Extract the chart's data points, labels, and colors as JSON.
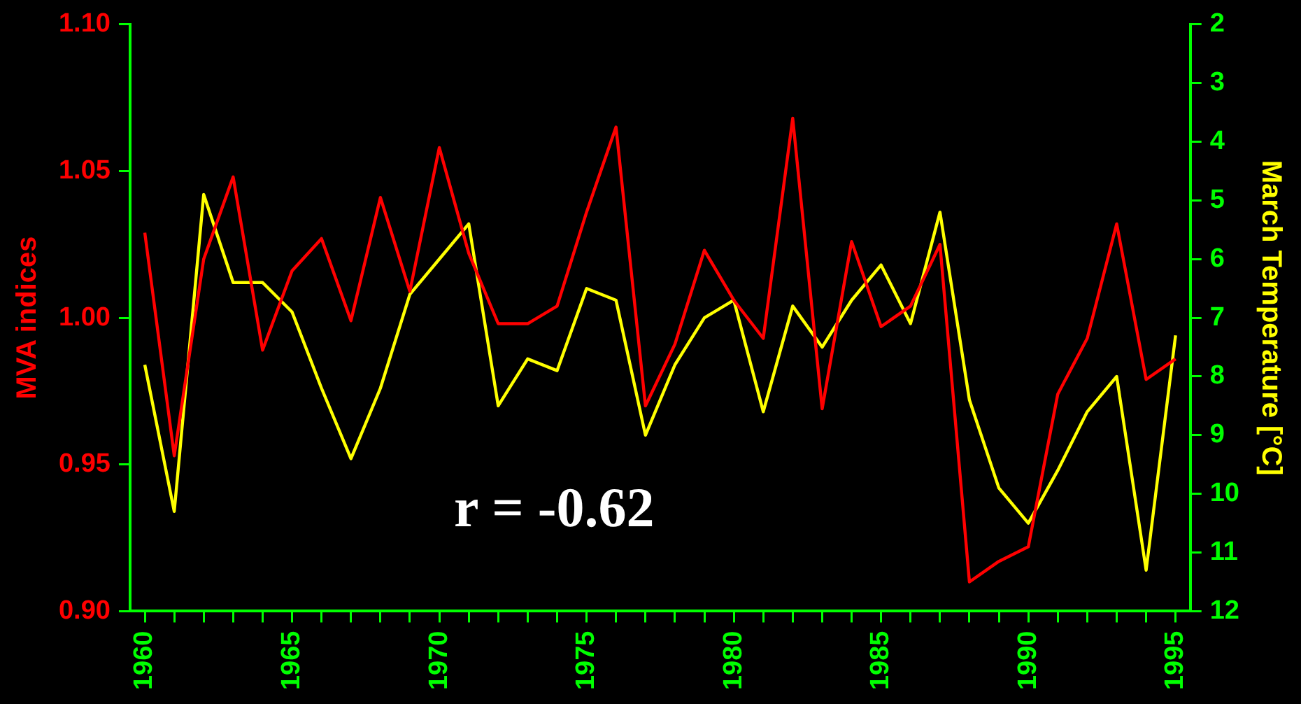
{
  "chart_data": {
    "type": "line",
    "ylabel": "MVA indices",
    "y2label": "March Temperature [°C]",
    "annotations": [
      "r = -0.62"
    ],
    "x": [
      1960,
      1961,
      1962,
      1963,
      1964,
      1965,
      1966,
      1967,
      1968,
      1969,
      1970,
      1971,
      1972,
      1973,
      1974,
      1975,
      1976,
      1977,
      1978,
      1979,
      1980,
      1981,
      1982,
      1983,
      1984,
      1985,
      1986,
      1987,
      1988,
      1989,
      1990,
      1991,
      1992,
      1993,
      1994,
      1995
    ],
    "series": [
      {
        "color": "#ff0000",
        "values": [
          1.029,
          0.953,
          1.02,
          1.048,
          0.989,
          1.016,
          1.027,
          0.999,
          1.041,
          1.009,
          1.058,
          1.022,
          0.998,
          0.998,
          1.004,
          1.036,
          1.065,
          0.97,
          0.991,
          1.023,
          1.006,
          0.993,
          1.068,
          0.969,
          1.026,
          0.997,
          1.004,
          1.025,
          0.91,
          0.917,
          0.922,
          0.974,
          0.993,
          1.032,
          0.979,
          0.986
        ]
      },
      {
        "color": "#ffff00",
        "axis": "y2",
        "values": [
          7.8,
          10.3,
          4.9,
          6.4,
          6.4,
          6.9,
          8.2,
          9.4,
          8.2,
          6.6,
          6.0,
          5.4,
          8.5,
          7.7,
          7.9,
          6.5,
          6.7,
          9.0,
          7.8,
          7.0,
          6.7,
          8.6,
          6.8,
          7.5,
          6.7,
          6.1,
          7.1,
          5.2,
          8.4,
          9.9,
          10.5,
          9.6,
          8.6,
          8.0,
          11.3,
          7.3
        ]
      }
    ],
    "xlim": [
      1959.5,
      1995.5
    ],
    "xticks": [
      1960,
      {
        "value": 1961,
        "label": null
      },
      {
        "value": 1962,
        "label": null
      },
      {
        "value": 1963,
        "label": null
      },
      {
        "value": 1964,
        "label": null
      },
      1965,
      {
        "value": 1966,
        "label": null
      },
      {
        "value": 1967,
        "label": null
      },
      {
        "value": 1968,
        "label": null
      },
      {
        "value": 1969,
        "label": null
      },
      1970,
      {
        "value": 1971,
        "label": null
      },
      {
        "value": 1972,
        "label": null
      },
      {
        "value": 1973,
        "label": null
      },
      {
        "value": 1974,
        "label": null
      },
      1975,
      {
        "value": 1976,
        "label": null
      },
      {
        "value": 1977,
        "label": null
      },
      {
        "value": 1978,
        "label": null
      },
      {
        "value": 1979,
        "label": null
      },
      1980,
      {
        "value": 1981,
        "label": null
      },
      {
        "value": 1982,
        "label": null
      },
      {
        "value": 1983,
        "label": null
      },
      {
        "value": 1984,
        "label": null
      },
      1985,
      {
        "value": 1986,
        "label": null
      },
      {
        "value": 1987,
        "label": null
      },
      {
        "value": 1988,
        "label": null
      },
      {
        "value": 1989,
        "label": null
      },
      1990,
      {
        "value": 1991,
        "label": null
      },
      {
        "value": 1992,
        "label": null
      },
      {
        "value": 1993,
        "label": null
      },
      {
        "value": 1994,
        "label": null
      },
      1995
    ],
    "ylim": [
      0.9,
      1.1
    ],
    "yticks": [
      {
        "value": 0.9,
        "label": "0.90"
      },
      {
        "value": 0.95,
        "label": "0.95"
      },
      {
        "value": 1.0,
        "label": "1.00"
      },
      {
        "value": 1.05,
        "label": "1.05"
      },
      {
        "value": 1.1,
        "label": "1.10"
      }
    ],
    "y2lim": [
      12,
      2
    ],
    "y2ticks": [
      2,
      3,
      4,
      5,
      6,
      7,
      8,
      9,
      10,
      11,
      12
    ],
    "grid": false,
    "legend": false,
    "marker": "none",
    "line_style": "solid"
  }
}
